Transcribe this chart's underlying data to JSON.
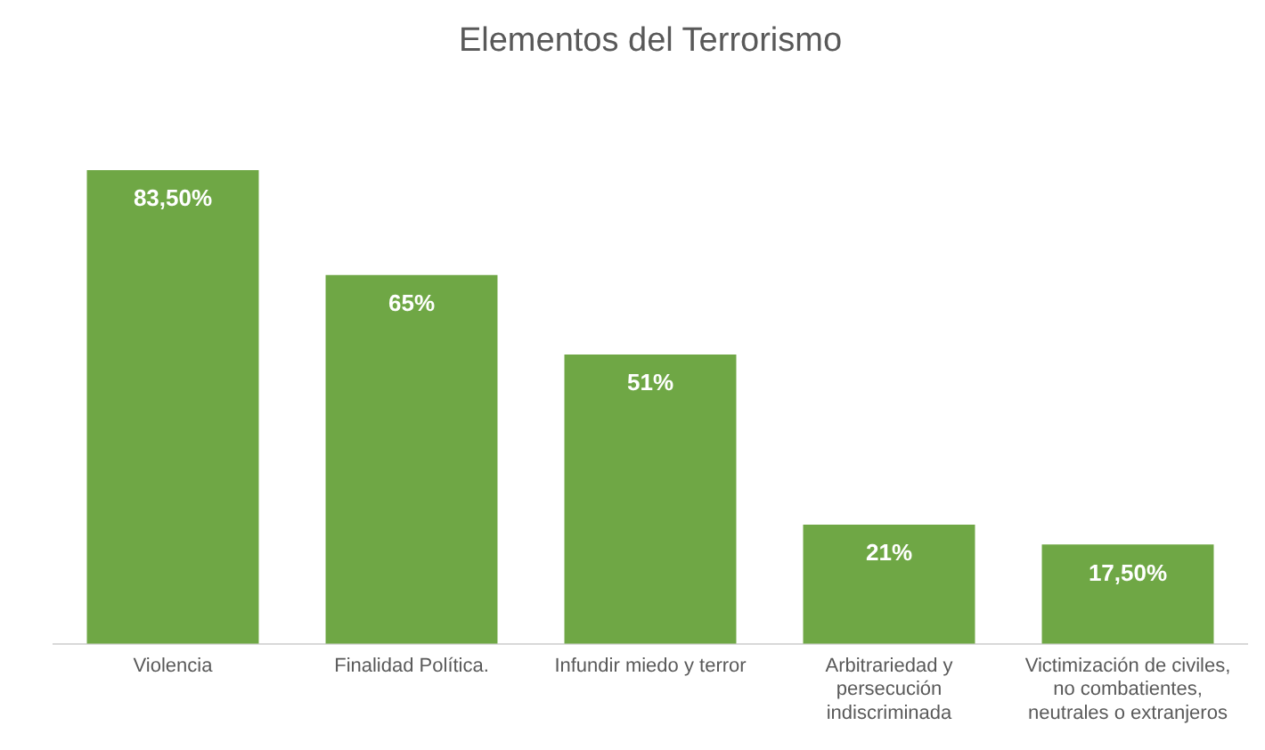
{
  "chart_data": {
    "type": "bar",
    "title": "Elementos del Terrorismo",
    "categories": [
      "Violencia",
      "Finalidad Política.",
      "Infundir miedo y terror",
      "Arbitrariedad y persecución indiscriminada",
      "Victimización de civiles, no combatientes, neutrales o extranjeros"
    ],
    "values": [
      83.5,
      65,
      51,
      21,
      17.5
    ],
    "value_labels": [
      "83,50%",
      "65%",
      "51%",
      "21%",
      "17,50%"
    ],
    "color": "#6fa745",
    "grid": false,
    "legend": false
  }
}
